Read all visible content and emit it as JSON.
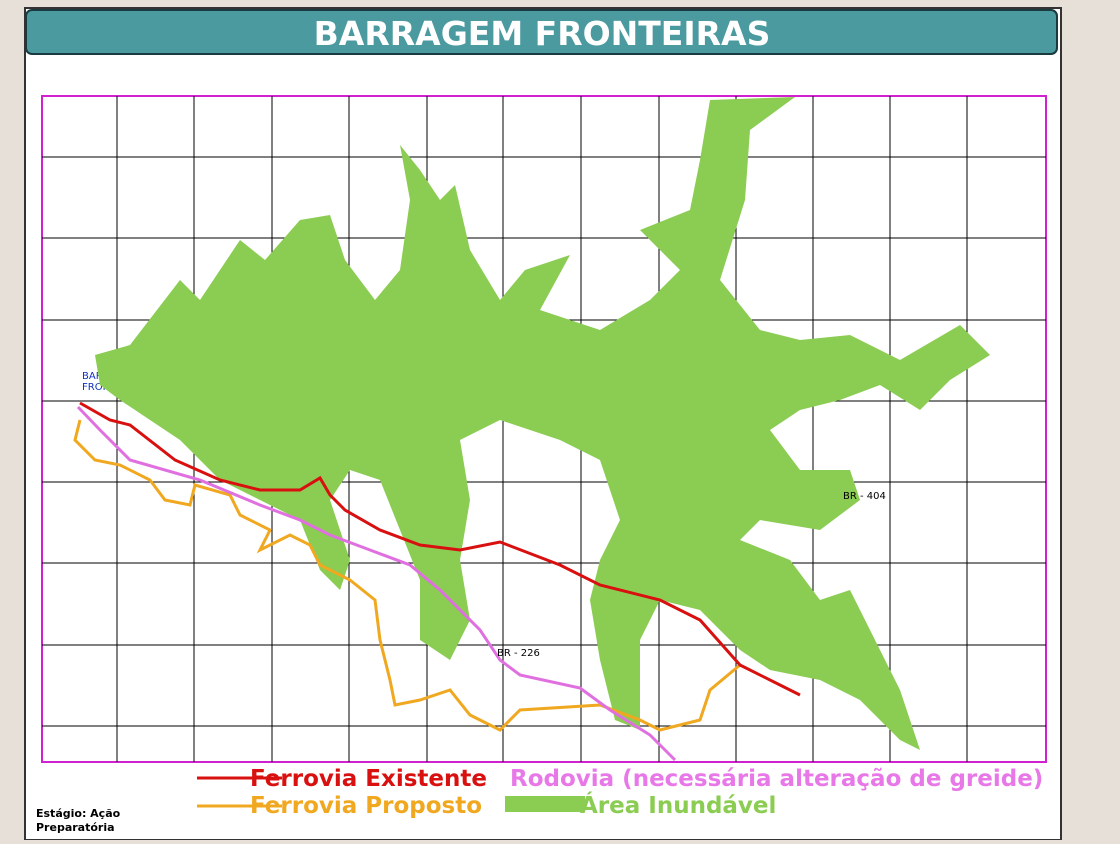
{
  "header": {
    "title": "BARRAGEM FRONTEIRAS"
  },
  "map": {
    "dam_label": [
      "BARRAGEM",
      "FRONTEIRAS"
    ],
    "road_labels": [
      "BR - 404",
      "BR - 226"
    ]
  },
  "legend": [
    {
      "label": "Ferrovia Existente"
    },
    {
      "label": "Rodovia (necessária alteração de greide)"
    },
    {
      "label": "Ferrovia Proposto"
    },
    {
      "label": "Área Inundável"
    }
  ],
  "footer": {
    "stage": [
      "Estágio: Ação",
      "Preparatória"
    ]
  }
}
